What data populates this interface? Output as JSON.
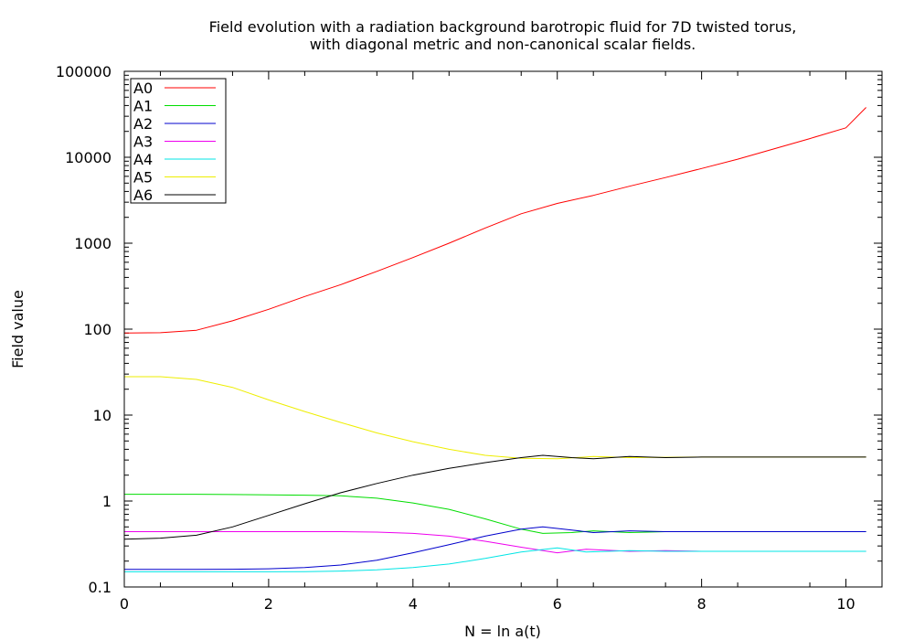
{
  "chart_data": {
    "type": "line",
    "title_lines": [
      "Field evolution with a radiation background barotropic fluid for 7D twisted torus,",
      "with diagonal metric and non-canonical scalar fields."
    ],
    "xlabel": "N = ln a(t)",
    "ylabel": "Field value",
    "xlim": [
      0,
      10.5
    ],
    "ylim": [
      0.1,
      100000
    ],
    "yscale": "log",
    "grid": false,
    "legend_position": "top-left",
    "x_ticks": [
      0,
      2,
      4,
      6,
      8,
      10
    ],
    "x_tick_labels": [
      "0",
      "2",
      "4",
      "6",
      "8",
      "10"
    ],
    "y_ticks": [
      0.1,
      1,
      10,
      100,
      1000,
      10000,
      100000
    ],
    "y_tick_labels": [
      "0.1",
      "1",
      "10",
      "100",
      "1000",
      "10000",
      "100000"
    ],
    "series": [
      {
        "name": "A0",
        "color": "#ff0000",
        "x": [
          0,
          0.5,
          1,
          1.5,
          2,
          2.5,
          3,
          3.5,
          4,
          4.5,
          5,
          5.5,
          6,
          6.5,
          7,
          7.5,
          8,
          8.5,
          9,
          9.5,
          10,
          10.28
        ],
        "y": [
          90,
          91,
          97,
          125,
          170,
          240,
          330,
          470,
          680,
          1000,
          1500,
          2200,
          2900,
          3600,
          4600,
          5800,
          7400,
          9500,
          12500,
          16500,
          22000,
          38000
        ]
      },
      {
        "name": "A1",
        "color": "#00dd00",
        "x": [
          0,
          0.5,
          1,
          1.5,
          2,
          2.5,
          3,
          3.5,
          4,
          4.5,
          5,
          5.5,
          5.8,
          6.2,
          6.5,
          7,
          7.5,
          8,
          9,
          10,
          10.28
        ],
        "y": [
          1.2,
          1.2,
          1.2,
          1.19,
          1.18,
          1.17,
          1.15,
          1.08,
          0.95,
          0.8,
          0.62,
          0.47,
          0.42,
          0.43,
          0.45,
          0.43,
          0.44,
          0.44,
          0.44,
          0.44,
          0.44
        ]
      },
      {
        "name": "A2",
        "color": "#0000cc",
        "x": [
          0,
          0.5,
          1,
          1.5,
          2,
          2.5,
          3,
          3.5,
          4,
          4.5,
          5,
          5.5,
          5.8,
          6.2,
          6.5,
          7,
          7.5,
          8,
          9,
          10,
          10.28
        ],
        "y": [
          0.16,
          0.16,
          0.16,
          0.161,
          0.163,
          0.168,
          0.18,
          0.205,
          0.25,
          0.31,
          0.39,
          0.47,
          0.5,
          0.46,
          0.43,
          0.45,
          0.44,
          0.44,
          0.44,
          0.44,
          0.44
        ]
      },
      {
        "name": "A3",
        "color": "#ee00ee",
        "x": [
          0,
          0.5,
          1,
          1.5,
          2,
          2.5,
          3,
          3.5,
          4,
          4.5,
          5,
          5.5,
          6,
          6.4,
          7,
          7.5,
          8,
          9,
          10,
          10.28
        ],
        "y": [
          0.44,
          0.44,
          0.44,
          0.44,
          0.44,
          0.44,
          0.44,
          0.435,
          0.42,
          0.39,
          0.34,
          0.29,
          0.25,
          0.275,
          0.26,
          0.265,
          0.26,
          0.26,
          0.26,
          0.26
        ]
      },
      {
        "name": "A4",
        "color": "#00e5e5",
        "x": [
          0,
          0.5,
          1,
          1.5,
          2,
          2.5,
          3,
          3.5,
          4,
          4.5,
          5,
          5.5,
          6,
          6.4,
          7,
          7.5,
          8,
          9,
          10,
          10.28
        ],
        "y": [
          0.15,
          0.15,
          0.15,
          0.15,
          0.15,
          0.151,
          0.153,
          0.158,
          0.168,
          0.185,
          0.215,
          0.255,
          0.285,
          0.255,
          0.265,
          0.26,
          0.26,
          0.26,
          0.26,
          0.26
        ]
      },
      {
        "name": "A5",
        "color": "#eeee00",
        "x": [
          0,
          0.5,
          1,
          1.5,
          2,
          2.5,
          3,
          3.5,
          4,
          4.5,
          5,
          5.5,
          6,
          6.5,
          7,
          8,
          9,
          10,
          10.28
        ],
        "y": [
          28,
          28,
          26,
          21,
          15,
          11,
          8.2,
          6.2,
          4.9,
          4,
          3.4,
          3.15,
          3.1,
          3.3,
          3.2,
          3.25,
          3.25,
          3.25,
          3.25
        ]
      },
      {
        "name": "A6",
        "color": "#000000",
        "x": [
          0,
          0.5,
          1,
          1.5,
          2,
          2.5,
          3,
          3.5,
          4,
          4.5,
          5,
          5.5,
          5.8,
          6.2,
          6.5,
          7,
          7.5,
          8,
          9,
          10,
          10.28
        ],
        "y": [
          0.36,
          0.37,
          0.4,
          0.5,
          0.68,
          0.93,
          1.25,
          1.6,
          2,
          2.4,
          2.8,
          3.2,
          3.4,
          3.2,
          3.1,
          3.3,
          3.2,
          3.25,
          3.25,
          3.25,
          3.25
        ]
      }
    ]
  }
}
